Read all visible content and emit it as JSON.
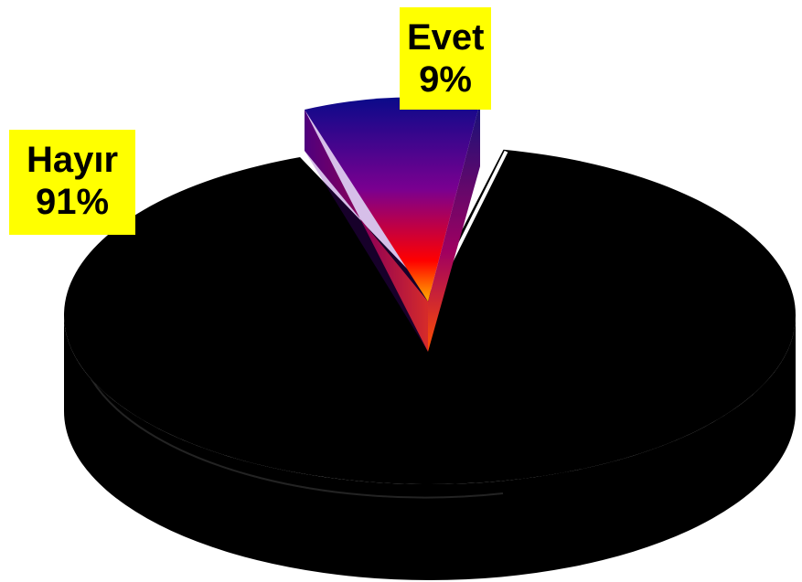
{
  "chart_data": {
    "type": "pie",
    "style": "3d-exploded",
    "slices": [
      {
        "label": "Hayır",
        "value": 91,
        "value_text": "91%",
        "color": "#000000"
      },
      {
        "label": "Evet",
        "value": 9,
        "value_text": "9%",
        "color": "#5a00a8"
      }
    ]
  },
  "colors": {
    "label_background": "#ffff00",
    "label_text": "#000000",
    "evet_gradient_top": "#0a0a8a",
    "evet_gradient_mid": "#8a008a",
    "evet_gradient_low": "#ff0000",
    "evet_gradient_tip": "#ffb000"
  }
}
